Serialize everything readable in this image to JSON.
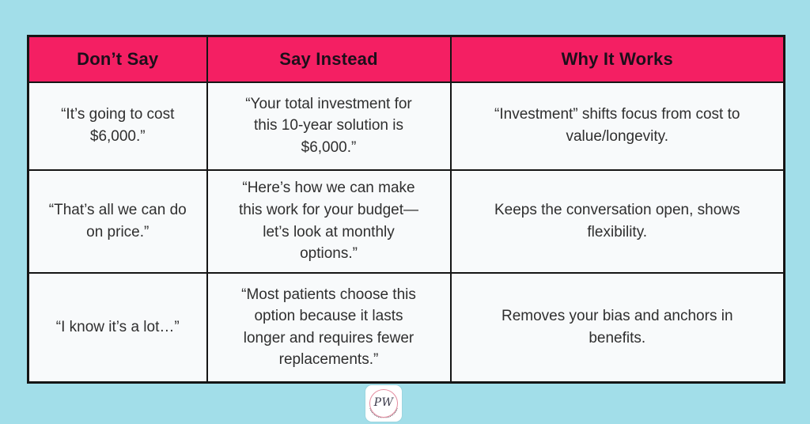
{
  "colors": {
    "page_background": "#A2DEE9",
    "header_background": "#F41F63",
    "header_text": "#1C0F1A",
    "cell_background": "#F8FAFB",
    "body_text": "#2F2F2F",
    "table_border": "#151515",
    "logo_ring": "#E58CA0"
  },
  "chart_data": {
    "type": "table",
    "columns": [
      "Don’t Say",
      "Say Instead",
      "Why It Works"
    ],
    "rows": [
      [
        "“It’s going to cost $6,000.”",
        "“Your total investment for this 10-year solution is $6,000.”",
        "“Investment” shifts focus from cost to value/longevity."
      ],
      [
        "“That’s all we can do on price.”",
        "“Here’s how we can make this work for your budget—let’s look at monthly options.”",
        "Keeps the conversation open, shows flexibility."
      ],
      [
        "“I know it’s a lot…”",
        "“Most patients choose this option because it lasts longer and requires fewer replacements.”",
        "Removes your bias and anchors in benefits."
      ]
    ],
    "layout": {
      "grid": "3 columns x 3 body rows",
      "header_position": "top"
    }
  },
  "logo": {
    "monogram": "PW"
  }
}
